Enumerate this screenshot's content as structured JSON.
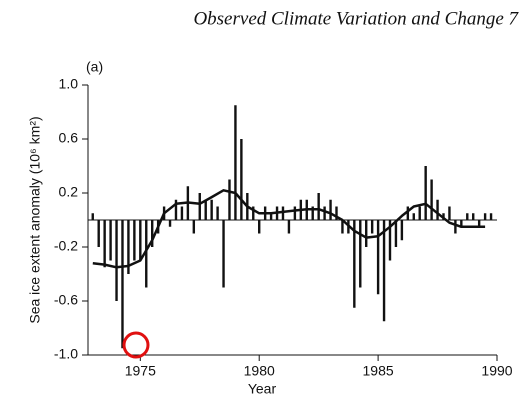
{
  "header": "Observed Climate Variation and Change 7",
  "chart_data": {
    "type": "bar",
    "annotation": "(a)",
    "xlabel": "Year",
    "ylabel": "Sea ice extent anomaly (10⁶ km²)",
    "color": "#111111",
    "line_color": "#111111",
    "xlim": [
      1972.8,
      1990
    ],
    "xticks": [
      1975,
      1980,
      1985,
      1990
    ],
    "ylim": [
      -1.0,
      1.0
    ],
    "yticks": [
      {
        "value": -1.0,
        "label": "-1.0"
      },
      -0.6,
      -0.2,
      0.2,
      0.6,
      {
        "value": 1.0,
        "label": "1.0"
      }
    ],
    "x": [
      1973,
      1973.25,
      1973.5,
      1973.75,
      1974,
      1974.25,
      1974.5,
      1974.75,
      1975,
      1975.25,
      1975.5,
      1975.75,
      1976,
      1976.25,
      1976.5,
      1976.75,
      1977,
      1977.25,
      1977.5,
      1977.75,
      1978,
      1978.25,
      1978.5,
      1978.75,
      1979,
      1979.25,
      1979.5,
      1979.75,
      1980,
      1980.25,
      1980.5,
      1980.75,
      1981,
      1981.25,
      1981.5,
      1981.75,
      1982,
      1982.25,
      1982.5,
      1982.75,
      1983,
      1983.25,
      1983.5,
      1983.75,
      1984,
      1984.25,
      1984.5,
      1984.75,
      1985,
      1985.25,
      1985.5,
      1985.75,
      1986,
      1986.25,
      1986.5,
      1986.75,
      1987,
      1987.25,
      1987.5,
      1987.75,
      1988,
      1988.25,
      1988.5,
      1988.75,
      1989,
      1989.25,
      1989.5,
      1989.75
    ],
    "values": [
      0.05,
      -0.2,
      -0.35,
      -0.3,
      -0.6,
      -0.95,
      -0.4,
      -0.3,
      -0.3,
      -0.5,
      -0.2,
      -0.1,
      0.1,
      -0.05,
      0.15,
      0.1,
      0.25,
      -0.1,
      0.2,
      0.15,
      0.15,
      0.1,
      -0.5,
      0.3,
      0.85,
      0.6,
      0.2,
      0.1,
      -0.1,
      0.1,
      0.05,
      0.1,
      0.1,
      -0.1,
      0.1,
      0.15,
      0.15,
      0.1,
      0.2,
      0.1,
      0.15,
      0.1,
      -0.1,
      -0.1,
      -0.65,
      -0.5,
      -0.2,
      -0.1,
      -0.55,
      -0.75,
      -0.3,
      -0.2,
      -0.15,
      0.1,
      0.05,
      0.1,
      0.4,
      0.3,
      0.15,
      0.05,
      0.1,
      -0.1,
      -0.05,
      0.05,
      0.05,
      -0.05,
      0.05,
      0.05
    ],
    "line": {
      "x": [
        1973,
        1973.5,
        1974,
        1974.5,
        1975,
        1975.5,
        1976,
        1976.5,
        1977,
        1977.5,
        1978,
        1978.5,
        1979,
        1979.5,
        1980,
        1980.5,
        1981,
        1981.5,
        1982,
        1982.5,
        1983,
        1983.5,
        1984,
        1984.5,
        1985,
        1985.5,
        1986,
        1986.5,
        1987,
        1987.5,
        1988,
        1988.5,
        1989,
        1989.5
      ],
      "values": [
        -0.32,
        -0.33,
        -0.35,
        -0.34,
        -0.3,
        -0.15,
        0.05,
        0.12,
        0.13,
        0.12,
        0.17,
        0.22,
        0.2,
        0.1,
        0.05,
        0.05,
        0.06,
        0.07,
        0.08,
        0.08,
        0.05,
        0.0,
        -0.08,
        -0.13,
        -0.12,
        -0.05,
        0.03,
        0.1,
        0.12,
        0.05,
        -0.02,
        -0.05,
        -0.05,
        -0.05
      ]
    }
  }
}
